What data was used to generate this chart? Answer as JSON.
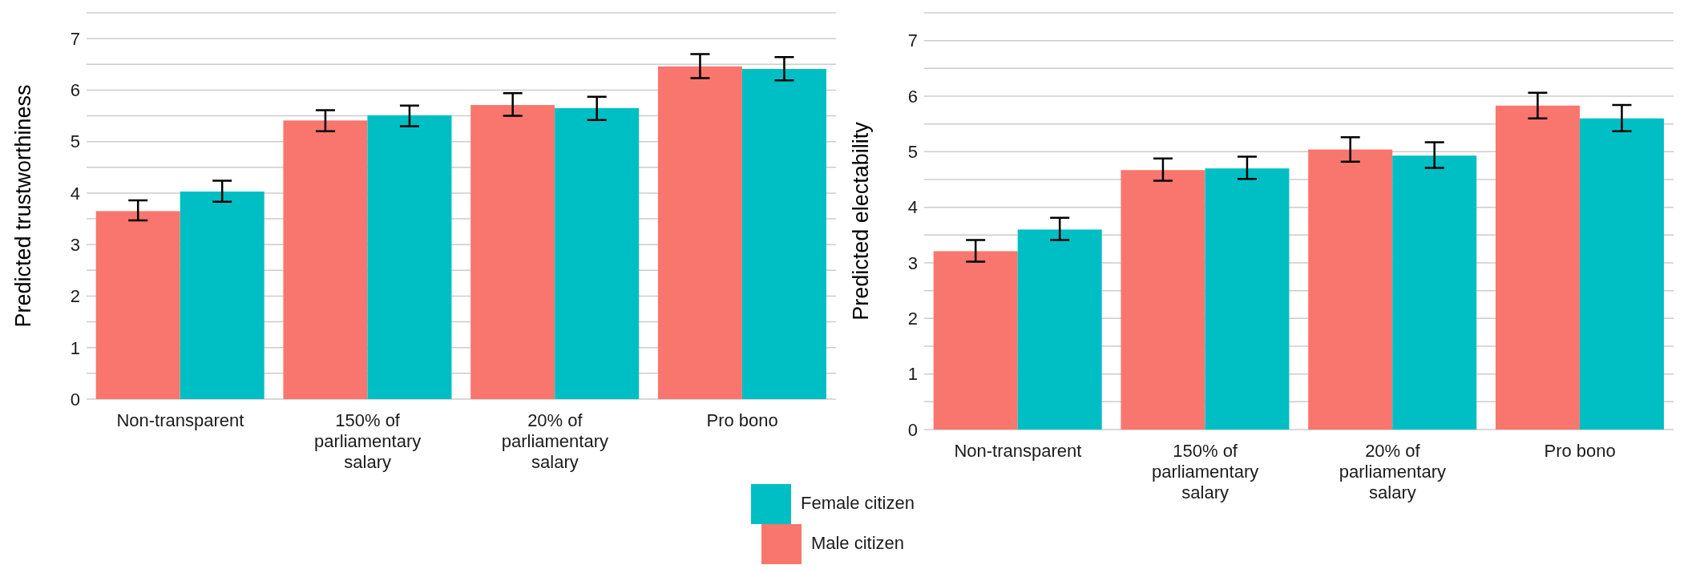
{
  "chart_data": [
    {
      "type": "bar",
      "ylabel": "Predicted trustworthiness",
      "categories": [
        "Non-transparent",
        "150% of parliamentary salary",
        "20% of parliamentary salary",
        "Pro bono"
      ],
      "ylim": [
        0,
        7.5
      ],
      "yticks": [
        0,
        1,
        2,
        3,
        4,
        5,
        6,
        7
      ],
      "grid": "y",
      "legend": "bottom",
      "series": [
        {
          "name": "Male citizen",
          "color": "#f8766d",
          "values": [
            3.65,
            5.41,
            5.71,
            6.46
          ],
          "errors": [
            [
              3.47,
              3.86
            ],
            [
              5.2,
              5.61
            ],
            [
              5.5,
              5.94
            ],
            [
              6.23,
              6.7
            ]
          ]
        },
        {
          "name": "Female citizen",
          "color": "#00bfc4",
          "values": [
            4.03,
            5.51,
            5.65,
            6.41
          ],
          "errors": [
            [
              3.83,
              4.24
            ],
            [
              5.3,
              5.7
            ],
            [
              5.42,
              5.87
            ],
            [
              6.19,
              6.64
            ]
          ]
        }
      ]
    },
    {
      "type": "bar",
      "ylabel": "Predicted electability",
      "categories": [
        "Non-transparent",
        "150% of parliamentary salary",
        "20% of parliamentary salary",
        "Pro bono"
      ],
      "ylim": [
        0,
        7.5
      ],
      "yticks": [
        0,
        1,
        2,
        3,
        4,
        5,
        6,
        7
      ],
      "grid": "y",
      "series": [
        {
          "color": "#f8766d",
          "values": [
            3.21,
            4.67,
            5.04,
            5.83
          ],
          "errors": [
            [
              3.02,
              3.41
            ],
            [
              4.48,
              4.88
            ],
            [
              4.82,
              5.26
            ],
            [
              5.6,
              6.06
            ]
          ]
        },
        {
          "color": "#00bfc4",
          "values": [
            3.6,
            4.7,
            4.93,
            5.6
          ],
          "errors": [
            [
              3.41,
              3.81
            ],
            [
              4.51,
              4.91
            ],
            [
              4.71,
              5.17
            ],
            [
              5.37,
              5.84
            ]
          ]
        }
      ]
    }
  ]
}
